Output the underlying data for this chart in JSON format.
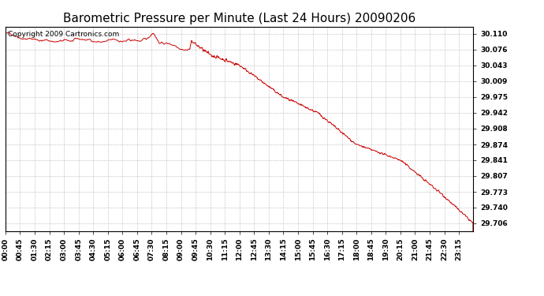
{
  "title": "Barometric Pressure per Minute (Last 24 Hours) 20090206",
  "copyright_text": "Copyright 2009 Cartronics.com",
  "line_color": "#cc0000",
  "background_color": "#ffffff",
  "plot_bg_color": "#ffffff",
  "grid_color": "#bbbbbb",
  "yticks": [
    29.706,
    29.74,
    29.773,
    29.807,
    29.841,
    29.874,
    29.908,
    29.942,
    29.975,
    30.009,
    30.043,
    30.076,
    30.11
  ],
  "ylim": [
    29.69,
    30.125
  ],
  "xtick_labels": [
    "00:00",
    "00:45",
    "01:30",
    "02:15",
    "03:00",
    "03:45",
    "04:30",
    "05:15",
    "06:00",
    "06:45",
    "07:30",
    "08:15",
    "09:00",
    "09:45",
    "10:30",
    "11:15",
    "12:00",
    "12:45",
    "13:30",
    "14:15",
    "15:00",
    "15:45",
    "16:30",
    "17:15",
    "18:00",
    "18:45",
    "19:30",
    "20:15",
    "21:00",
    "21:45",
    "22:30",
    "23:15"
  ],
  "title_fontsize": 11,
  "tick_fontsize": 6.5,
  "copyright_fontsize": 6.5,
  "line_width": 0.7
}
